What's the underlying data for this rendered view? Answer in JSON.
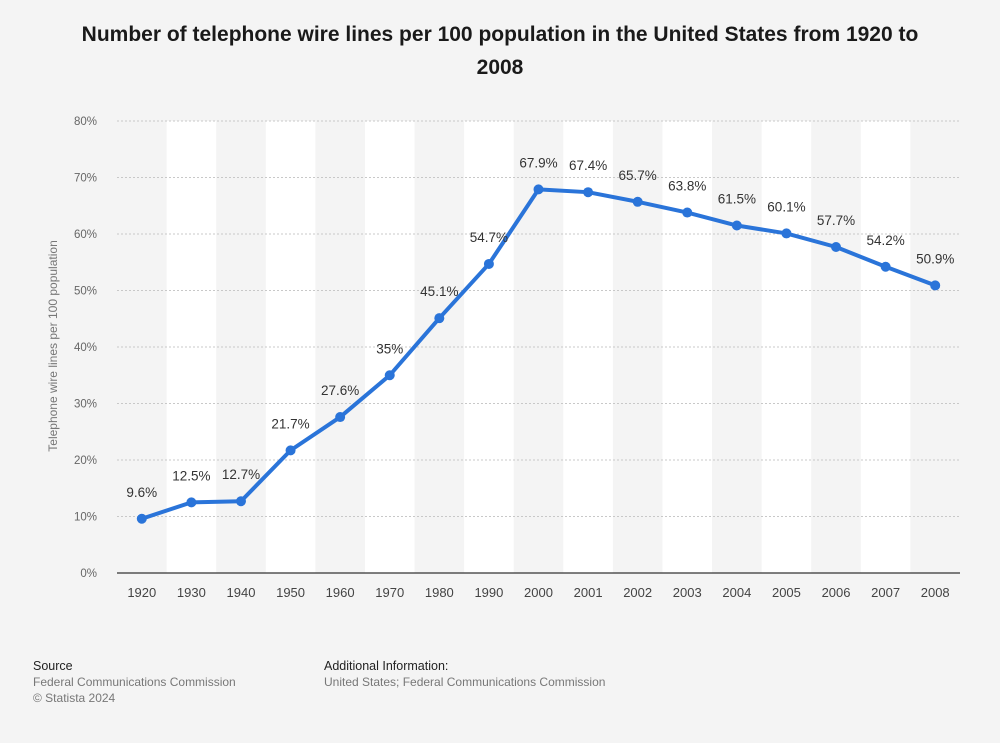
{
  "chart_data": {
    "type": "line",
    "title": "Number of telephone wire lines per 100 population in the United States from 1920 to 2008",
    "ylabel": "Telephone wire lines per 100 population",
    "xlabel": "",
    "categories": [
      "1920",
      "1930",
      "1940",
      "1950",
      "1960",
      "1970",
      "1980",
      "1990",
      "2000",
      "2001",
      "2002",
      "2003",
      "2004",
      "2005",
      "2006",
      "2007",
      "2008"
    ],
    "series": [
      {
        "values": [
          9.6,
          12.5,
          12.7,
          21.7,
          27.6,
          35,
          45.1,
          54.7,
          67.9,
          67.4,
          65.7,
          63.8,
          61.5,
          60.1,
          57.7,
          54.2,
          50.9
        ],
        "labels": [
          "9.6%",
          "12.5%",
          "12.7%",
          "21.7%",
          "27.6%",
          "35%",
          "45.1%",
          "54.7%",
          "67.9%",
          "67.4%",
          "65.7%",
          "63.8%",
          "61.5%",
          "60.1%",
          "57.7%",
          "54.2%",
          "50.9%"
        ]
      }
    ],
    "ylim": [
      0,
      80
    ],
    "yticks": [
      "0%",
      "10%",
      "20%",
      "30%",
      "40%",
      "50%",
      "60%",
      "70%",
      "80%"
    ],
    "grid": true,
    "colors": {
      "line": "#2a74d9",
      "band": "#ffffff"
    }
  },
  "footer": {
    "source_heading": "Source",
    "source_lines": [
      "Federal Communications Commission",
      "© Statista 2024"
    ],
    "info_heading": "Additional Information:",
    "info_lines": [
      "United States; Federal Communications Commission"
    ]
  }
}
